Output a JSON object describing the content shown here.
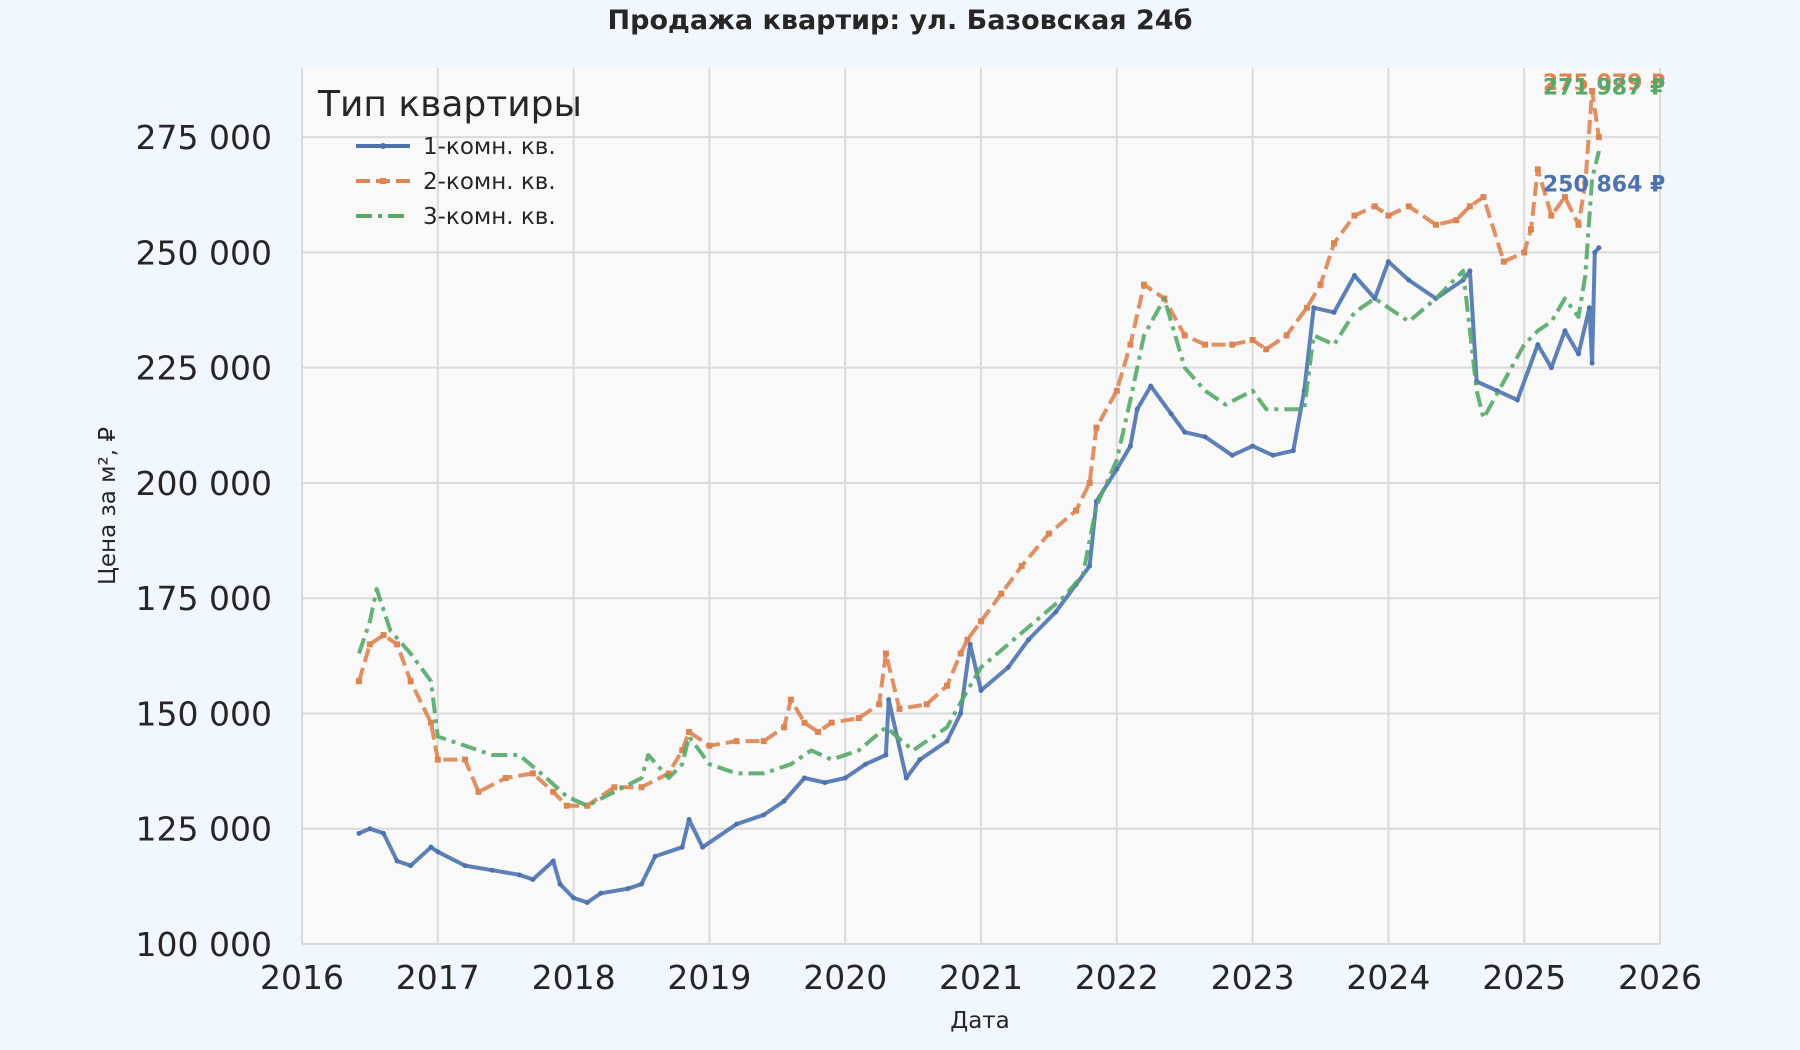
{
  "chart_data": {
    "type": "line",
    "title": "Продажа квартир: ул. Базовская 24б",
    "xlabel": "Дата",
    "ylabel": "Цена за м², ₽",
    "xlim": [
      2016,
      2026
    ],
    "ylim": [
      100000,
      290000
    ],
    "x_ticks": [
      2016,
      2017,
      2018,
      2019,
      2020,
      2021,
      2022,
      2023,
      2024,
      2025,
      2026
    ],
    "x_tick_labels": [
      "2016",
      "2017",
      "2018",
      "2019",
      "2020",
      "2021",
      "2022",
      "2023",
      "2024",
      "2025",
      "2026"
    ],
    "y_ticks": [
      100000,
      125000,
      150000,
      175000,
      200000,
      225000,
      250000,
      275000
    ],
    "y_tick_labels": [
      "100 000",
      "125 000",
      "150 000",
      "175 000",
      "200 000",
      "225 000",
      "250 000",
      "275 000"
    ],
    "grid": true,
    "legend": {
      "title": "Тип квартиры",
      "position": "top-left"
    },
    "series": [
      {
        "name": "1-комн. кв.",
        "color": "#4c72b0",
        "line_style": "solid",
        "marker": "dot",
        "end_label": "250 864 ₽",
        "end_label_value": 265000,
        "x": [
          2016.42,
          2016.5,
          2016.6,
          2016.7,
          2016.8,
          2016.95,
          2017.0,
          2017.2,
          2017.4,
          2017.6,
          2017.7,
          2017.85,
          2017.9,
          2018.0,
          2018.1,
          2018.2,
          2018.4,
          2018.5,
          2018.6,
          2018.8,
          2018.85,
          2018.95,
          2019.2,
          2019.4,
          2019.55,
          2019.7,
          2019.85,
          2020.0,
          2020.15,
          2020.3,
          2020.32,
          2020.45,
          2020.55,
          2020.75,
          2020.85,
          2020.92,
          2021.0,
          2021.2,
          2021.35,
          2021.55,
          2021.7,
          2021.8,
          2021.85,
          2022.0,
          2022.1,
          2022.15,
          2022.25,
          2022.4,
          2022.5,
          2022.65,
          2022.85,
          2023.0,
          2023.15,
          2023.3,
          2023.38,
          2023.45,
          2023.6,
          2023.75,
          2023.9,
          2024.0,
          2024.15,
          2024.35,
          2024.55,
          2024.6,
          2024.65,
          2024.8,
          2024.95,
          2025.1,
          2025.2,
          2025.3,
          2025.4,
          2025.48,
          2025.5,
          2025.52,
          2025.55
        ],
        "y": [
          124000,
          125000,
          124000,
          118000,
          117000,
          121000,
          120000,
          117000,
          116000,
          115000,
          114000,
          118000,
          113000,
          110000,
          109000,
          111000,
          112000,
          113000,
          119000,
          121000,
          127000,
          121000,
          126000,
          128000,
          131000,
          136000,
          135000,
          136000,
          139000,
          141000,
          153000,
          136000,
          140000,
          144000,
          150000,
          165000,
          155000,
          160000,
          166000,
          172000,
          178000,
          182000,
          196000,
          203000,
          208000,
          216000,
          221000,
          215000,
          211000,
          210000,
          206000,
          208000,
          206000,
          207000,
          220000,
          238000,
          237000,
          245000,
          240000,
          248000,
          244000,
          240000,
          244000,
          246000,
          222000,
          220000,
          218000,
          230000,
          225000,
          233000,
          228000,
          238000,
          226000,
          250000,
          251000
        ]
      },
      {
        "name": "2-комн. кв.",
        "color": "#dd8452",
        "line_style": "dashed",
        "marker": "square",
        "end_label": "275 079 ₽",
        "end_label_value": 287000,
        "x": [
          2016.42,
          2016.5,
          2016.6,
          2016.7,
          2016.8,
          2016.95,
          2017.0,
          2017.2,
          2017.3,
          2017.5,
          2017.7,
          2017.85,
          2017.95,
          2018.1,
          2018.3,
          2018.5,
          2018.7,
          2018.8,
          2018.85,
          2019.0,
          2019.2,
          2019.4,
          2019.55,
          2019.6,
          2019.7,
          2019.8,
          2019.9,
          2020.1,
          2020.25,
          2020.3,
          2020.4,
          2020.6,
          2020.75,
          2020.85,
          2020.9,
          2021.0,
          2021.15,
          2021.3,
          2021.5,
          2021.7,
          2021.8,
          2021.85,
          2022.0,
          2022.1,
          2022.2,
          2022.35,
          2022.5,
          2022.65,
          2022.85,
          2023.0,
          2023.1,
          2023.25,
          2023.4,
          2023.5,
          2023.6,
          2023.75,
          2023.9,
          2024.0,
          2024.15,
          2024.35,
          2024.5,
          2024.6,
          2024.7,
          2024.85,
          2025.0,
          2025.05,
          2025.1,
          2025.2,
          2025.3,
          2025.4,
          2025.45,
          2025.5,
          2025.55
        ],
        "y": [
          157000,
          165000,
          167000,
          165000,
          157000,
          148000,
          140000,
          140000,
          133000,
          136000,
          137000,
          133000,
          130000,
          130000,
          134000,
          134000,
          137000,
          142000,
          146000,
          143000,
          144000,
          144000,
          147000,
          153000,
          148000,
          146000,
          148000,
          149000,
          152000,
          163000,
          151000,
          152000,
          156000,
          163000,
          166000,
          170000,
          176000,
          182000,
          189000,
          194000,
          200000,
          212000,
          220000,
          230000,
          243000,
          240000,
          232000,
          230000,
          230000,
          231000,
          229000,
          232000,
          238000,
          243000,
          252000,
          258000,
          260000,
          258000,
          260000,
          256000,
          257000,
          260000,
          262000,
          248000,
          250000,
          255000,
          268000,
          258000,
          262000,
          256000,
          265000,
          285000,
          275000
        ]
      },
      {
        "name": "3-комн. кв.",
        "color": "#55a868",
        "line_style": "dashdot",
        "marker": "none",
        "end_label": "271 987 ₽",
        "end_label_value": 286000,
        "x": [
          2016.42,
          2016.5,
          2016.55,
          2016.65,
          2016.8,
          2016.95,
          2017.0,
          2017.2,
          2017.4,
          2017.6,
          2017.8,
          2017.95,
          2018.1,
          2018.3,
          2018.5,
          2018.55,
          2018.7,
          2018.8,
          2018.85,
          2019.0,
          2019.2,
          2019.4,
          2019.6,
          2019.75,
          2019.9,
          2020.1,
          2020.3,
          2020.5,
          2020.75,
          2020.9,
          2021.0,
          2021.2,
          2021.4,
          2021.6,
          2021.75,
          2021.85,
          2022.0,
          2022.1,
          2022.2,
          2022.35,
          2022.5,
          2022.65,
          2022.8,
          2023.0,
          2023.1,
          2023.25,
          2023.38,
          2023.45,
          2023.6,
          2023.75,
          2023.9,
          2024.0,
          2024.15,
          2024.35,
          2024.55,
          2024.65,
          2024.7,
          2024.85,
          2025.0,
          2025.1,
          2025.2,
          2025.3,
          2025.4,
          2025.45,
          2025.5,
          2025.55
        ],
        "y": [
          163000,
          170000,
          177000,
          168000,
          163000,
          157000,
          145000,
          143000,
          141000,
          141000,
          136000,
          132000,
          130000,
          133000,
          136000,
          141000,
          136000,
          139000,
          145000,
          139000,
          137000,
          137000,
          139000,
          142000,
          140000,
          142000,
          147000,
          142000,
          147000,
          155000,
          160000,
          165000,
          170000,
          175000,
          180000,
          195000,
          205000,
          218000,
          232000,
          240000,
          225000,
          220000,
          217000,
          220000,
          216000,
          216000,
          216000,
          232000,
          230000,
          237000,
          240000,
          238000,
          235000,
          240000,
          246000,
          220000,
          214000,
          222000,
          230000,
          233000,
          235000,
          240000,
          236000,
          245000,
          266000,
          272000
        ]
      }
    ]
  }
}
